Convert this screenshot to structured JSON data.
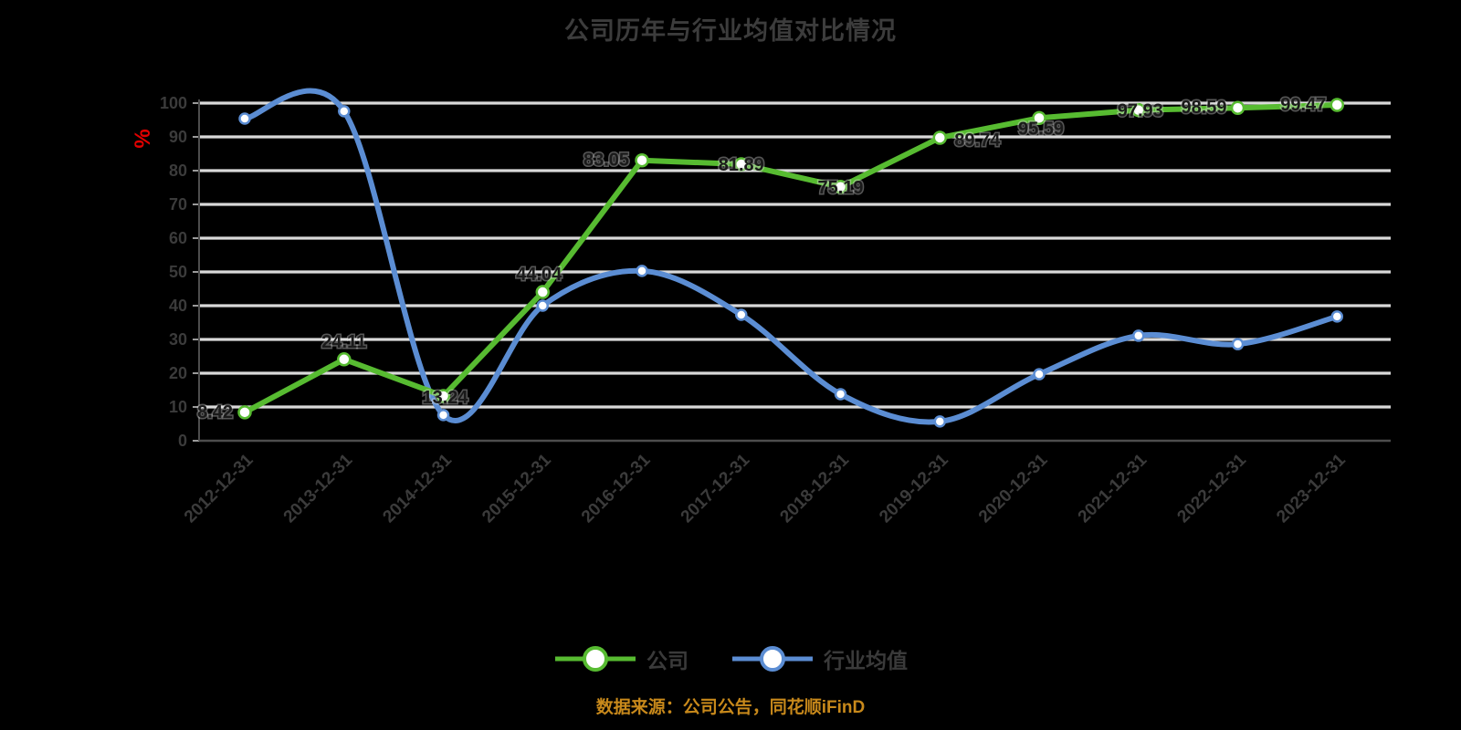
{
  "title": "公司历年与行业均值对比情况",
  "y_axis": {
    "unit": "%",
    "unit_color": "#e00000",
    "ticks": [
      100,
      90,
      80,
      70,
      60,
      50,
      40,
      30,
      20,
      10,
      0
    ]
  },
  "legend": [
    {
      "label": "公司",
      "color": "#57bb31"
    },
    {
      "label": "行业均值",
      "color": "#5b8dd3"
    }
  ],
  "footer": "数据来源：公司公告，同花顺iFinD",
  "colors": {
    "gridline": "#d9d9d9",
    "axis": "#4d4d4d",
    "tick_text": "#3b3b3b",
    "data_label": "#1a1a1a"
  },
  "chart_data": {
    "type": "line",
    "categories": [
      "2012-12-31",
      "2013-12-31",
      "2014-12-31",
      "2015-12-31",
      "2016-12-31",
      "2017-12-31",
      "2018-12-31",
      "2019-12-31",
      "2020-12-31",
      "2021-12-31",
      "2022-12-31",
      "2023-12-31"
    ],
    "series": [
      {
        "name": "公司",
        "color": "#57bb31",
        "smooth": false,
        "values": [
          8.42,
          24.11,
          13.24,
          44.04,
          83.05,
          81.89,
          75.19,
          89.74,
          95.59,
          97.93,
          98.59,
          99.47
        ],
        "labels": [
          "8.42",
          "24.11",
          "13.24",
          "44.04",
          "83.05",
          "81.89",
          "75.19",
          "89.74",
          "95.59",
          "97.93",
          "98.59",
          "99.47"
        ]
      },
      {
        "name": "行业均值",
        "color": "#5b8dd3",
        "smooth": true,
        "values": [
          95.4,
          97.6,
          7.6,
          40.0,
          50.3,
          37.3,
          13.8,
          5.7,
          19.7,
          31.1,
          28.6,
          36.8
        ],
        "labels": []
      }
    ],
    "title": "公司历年与行业均值对比情况",
    "xlabel": "",
    "ylabel": "%",
    "ylim": [
      0,
      100
    ],
    "grid": "horizontal",
    "legend_position": "bottom"
  }
}
